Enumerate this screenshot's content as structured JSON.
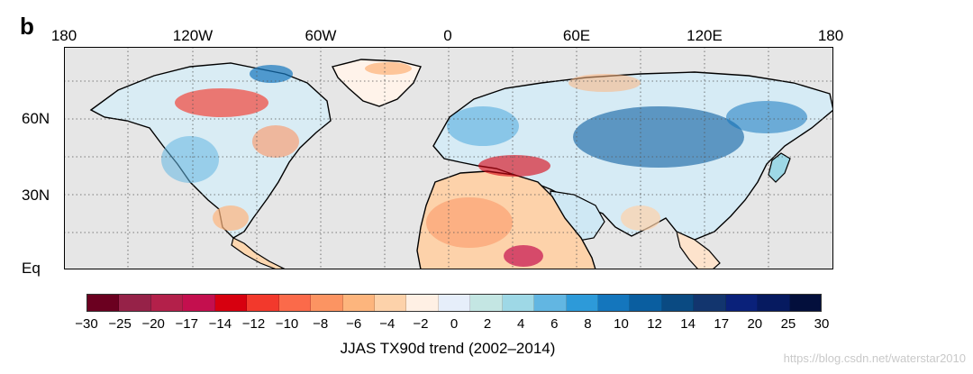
{
  "panel_label": "b",
  "map": {
    "lon_labels": [
      "180",
      "120W",
      "60W",
      "0",
      "60E",
      "120E",
      "180"
    ],
    "lat_labels": [
      "60N",
      "30N",
      "Eq"
    ],
    "ocean_color": "#e6e6e6",
    "grid": "dotted"
  },
  "colorbar": {
    "title": "JJAS TX90d trend (2002–2014)",
    "ticks": [
      "−30",
      "−25",
      "−20",
      "−17",
      "−14",
      "−12",
      "−10",
      "−8",
      "−6",
      "−4",
      "−2",
      "0",
      "2",
      "4",
      "6",
      "8",
      "10",
      "12",
      "14",
      "17",
      "20",
      "25",
      "30"
    ],
    "colors": [
      "#6b0020",
      "#962248",
      "#b3204a",
      "#c40f4e",
      "#d7000f",
      "#f2392c",
      "#fb6a4a",
      "#fc9462",
      "#fdb57d",
      "#fdd2aa",
      "#fff0e4",
      "#e6eefa",
      "#c4e6e3",
      "#9ed8e6",
      "#62b6e2",
      "#2d9ad9",
      "#1476bd",
      "#0a5ea0",
      "#0a4a82",
      "#12356e",
      "#0a217a",
      "#061a60",
      "#030f3c"
    ]
  },
  "watermark": "https://blog.csdn.net/waterstar2010"
}
